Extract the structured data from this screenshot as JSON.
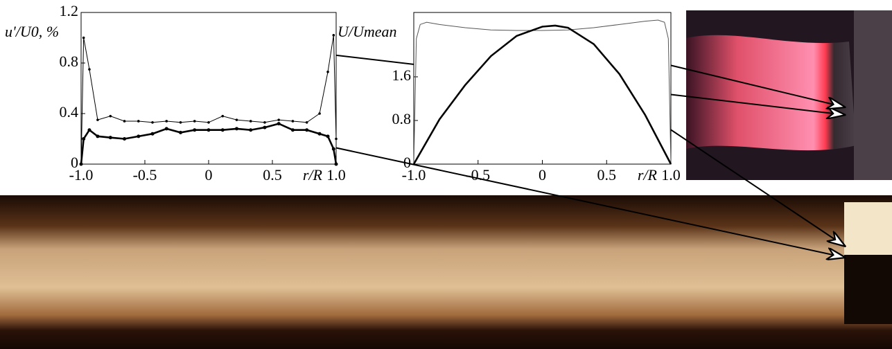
{
  "chart_data": [
    {
      "type": "line",
      "ylabel": "u'/U0, %",
      "xlabel": "r/R",
      "xlim": [
        -1,
        1
      ],
      "ylim": [
        0,
        1.2
      ],
      "xticks": [
        {
          "value": -1,
          "label": "-1.0"
        },
        -0.5,
        0,
        0.5,
        {
          "value": 1,
          "label": "1.0"
        }
      ],
      "yticks": [
        0,
        0.4,
        0.8,
        1.2
      ],
      "x": [
        -1,
        -0.98,
        -0.935,
        -0.87,
        -0.77,
        -0.66,
        -0.55,
        -0.44,
        -0.33,
        -0.22,
        -0.11,
        0,
        0.11,
        0.22,
        0.33,
        0.44,
        0.55,
        0.66,
        0.77,
        0.87,
        0.935,
        0.98,
        1
      ],
      "markers": true,
      "series": [
        {
          "color": "#000000",
          "values": [
            0,
            1.0,
            0.75,
            0.35,
            0.38,
            0.34,
            0.34,
            0.33,
            0.34,
            0.33,
            0.34,
            0.33,
            0.38,
            0.35,
            0.34,
            0.33,
            0.35,
            0.34,
            0.33,
            0.4,
            0.73,
            1.02,
            0.2
          ]
        },
        {
          "color": "#000000",
          "values": [
            0,
            0.2,
            0.27,
            0.22,
            0.21,
            0.2,
            0.22,
            0.24,
            0.28,
            0.25,
            0.27,
            0.27,
            0.27,
            0.28,
            0.27,
            0.29,
            0.32,
            0.27,
            0.27,
            0.24,
            0.22,
            0.12,
            0
          ]
        }
      ]
    },
    {
      "type": "line",
      "ylabel": "U/Umean",
      "xlabel": "r/R",
      "xlim": [
        -1,
        1
      ],
      "ylim": [
        0,
        2.78
      ],
      "xticks": [
        {
          "value": -1,
          "label": "-1.0"
        },
        -0.5,
        0,
        0.5,
        {
          "value": 1,
          "label": "1.0"
        }
      ],
      "yticks": [
        0,
        0.8,
        1.6
      ],
      "markers": false,
      "series": [
        {
          "color": "#555555",
          "x": [
            -1,
            -0.98,
            -0.95,
            -0.9,
            -0.8,
            -0.6,
            -0.4,
            -0.2,
            0,
            0.2,
            0.4,
            0.6,
            0.8,
            0.9,
            0.95,
            0.98,
            1
          ],
          "values": [
            0,
            2.3,
            2.56,
            2.6,
            2.56,
            2.5,
            2.46,
            2.45,
            2.45,
            2.46,
            2.5,
            2.56,
            2.62,
            2.64,
            2.6,
            2.3,
            0
          ]
        },
        {
          "color": "#000000",
          "x": [
            -1,
            -0.8,
            -0.6,
            -0.4,
            -0.2,
            0,
            0.1,
            0.2,
            0.4,
            0.6,
            0.8,
            1
          ],
          "values": [
            0,
            0.82,
            1.45,
            1.98,
            2.35,
            2.52,
            2.54,
            2.5,
            2.2,
            1.65,
            0.9,
            0
          ]
        }
      ]
    }
  ]
}
